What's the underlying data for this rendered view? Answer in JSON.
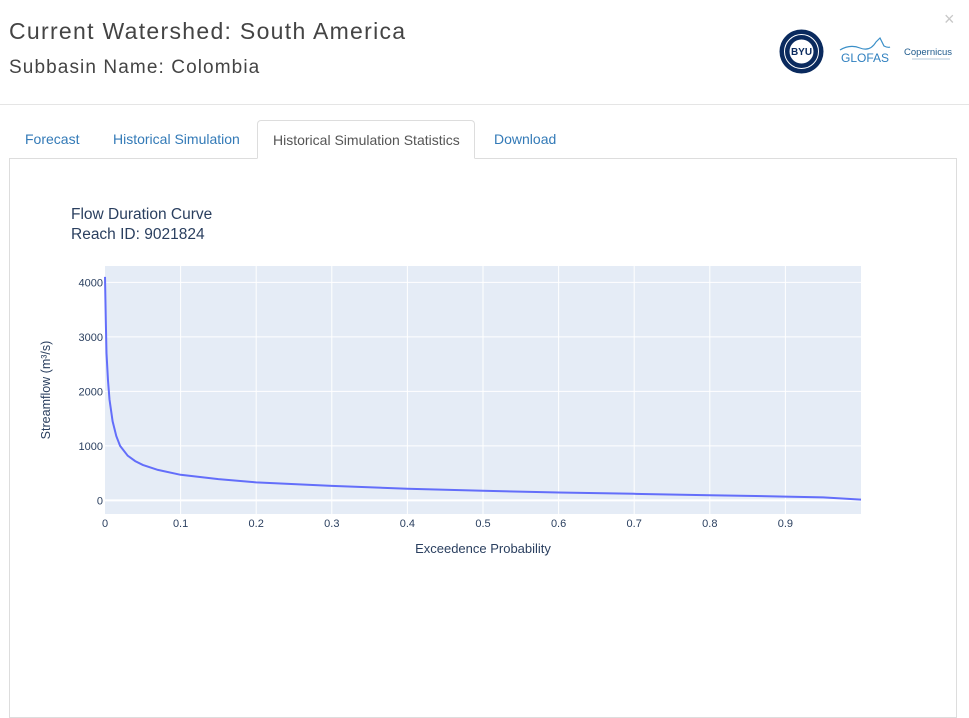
{
  "header": {
    "title": "Current Watershed: South America",
    "subtitle": "Subbasin Name: Colombia",
    "close_symbol": "×",
    "logos": {
      "byu": "BYU",
      "glofas": "GLOFAS",
      "copernicus": "Copernicus"
    }
  },
  "tabs": [
    {
      "label": "Forecast",
      "active": false
    },
    {
      "label": "Historical Simulation",
      "active": false
    },
    {
      "label": "Historical Simulation Statistics",
      "active": true
    },
    {
      "label": "Download",
      "active": false
    }
  ],
  "chart_data": {
    "type": "line",
    "title": "Flow Duration Curve",
    "subtitle": "Reach ID: 9021824",
    "xlabel": "Exceedence Probability",
    "ylabel": "Streamflow (m³/s)",
    "xlim": [
      0,
      1
    ],
    "ylim": [
      -250,
      4300
    ],
    "xticks": [
      0,
      0.1,
      0.2,
      0.3,
      0.4,
      0.5,
      0.6,
      0.7,
      0.8,
      0.9
    ],
    "xtick_labels": [
      "0",
      "0.1",
      "0.2",
      "0.3",
      "0.4",
      "0.5",
      "0.6",
      "0.7",
      "0.8",
      "0.9"
    ],
    "yticks": [
      0,
      1000,
      2000,
      3000,
      4000
    ],
    "ytick_labels": [
      "0",
      "1000",
      "2000",
      "3000",
      "4000"
    ],
    "grid": true,
    "colors": {
      "line": "#636efa",
      "plot_bg": "#e5ecf6",
      "grid": "#ffffff",
      "text": "#2a3f5f"
    },
    "series": [
      {
        "x": [
          0,
          0.001,
          0.002,
          0.004,
          0.006,
          0.01,
          0.015,
          0.02,
          0.03,
          0.04,
          0.05,
          0.07,
          0.1,
          0.15,
          0.2,
          0.3,
          0.4,
          0.5,
          0.6,
          0.7,
          0.8,
          0.9,
          0.95,
          1.0
        ],
        "values": [
          4100,
          3300,
          2700,
          2200,
          1850,
          1450,
          1180,
          1000,
          820,
          720,
          650,
          560,
          470,
          390,
          330,
          265,
          215,
          175,
          145,
          120,
          95,
          70,
          55,
          15
        ]
      }
    ]
  }
}
